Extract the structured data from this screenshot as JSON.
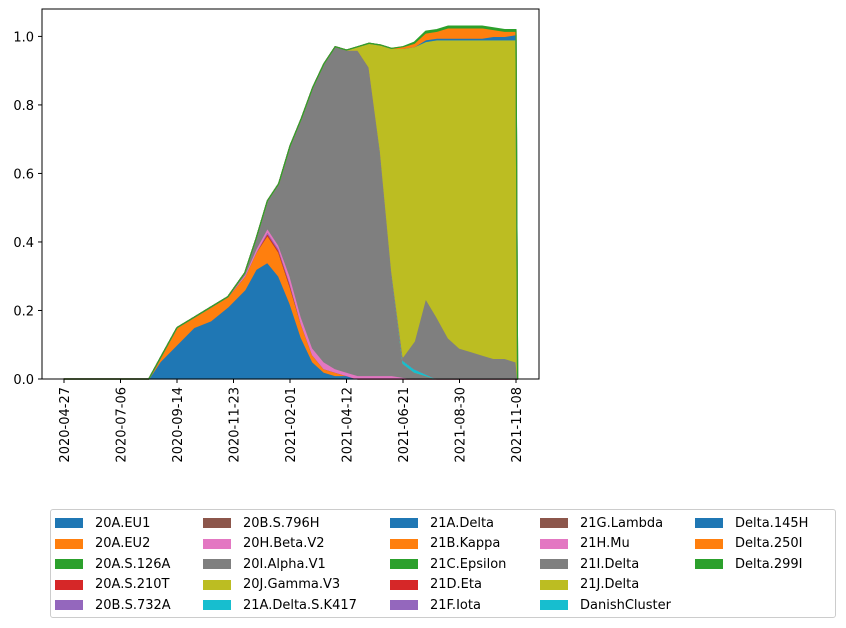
{
  "chart_data": {
    "type": "area",
    "stacked": true,
    "ylim": [
      0,
      1.08
    ],
    "yticks": [
      "0.0",
      "0.2",
      "0.4",
      "0.6",
      "0.8",
      "1.0"
    ],
    "xticks": [
      "2020-04-27",
      "2020-07-06",
      "2020-09-14",
      "2020-11-23",
      "2021-02-01",
      "2021-04-12",
      "2021-06-21",
      "2021-08-30",
      "2021-11-08"
    ],
    "legend_position": "below, 5 columns",
    "x": [
      "2020-04-27",
      "2020-07-06",
      "2020-08-10",
      "2020-08-24",
      "2020-09-14",
      "2020-10-05",
      "2020-10-26",
      "2020-11-16",
      "2020-12-07",
      "2020-12-21",
      "2021-01-04",
      "2021-01-18",
      "2021-02-01",
      "2021-02-15",
      "2021-03-01",
      "2021-03-15",
      "2021-03-29",
      "2021-04-12",
      "2021-04-26",
      "2021-05-10",
      "2021-05-24",
      "2021-06-07",
      "2021-06-21",
      "2021-07-05",
      "2021-07-19",
      "2021-08-02",
      "2021-08-16",
      "2021-08-30",
      "2021-09-13",
      "2021-09-27",
      "2021-10-11",
      "2021-10-25",
      "2021-11-08",
      "2021-11-10"
    ],
    "series": [
      {
        "name": "20A.EU1",
        "color": "#1f77b4",
        "values": [
          0,
          0,
          0,
          0.05,
          0.1,
          0.15,
          0.17,
          0.21,
          0.26,
          0.32,
          0.34,
          0.3,
          0.22,
          0.12,
          0.05,
          0.02,
          0.01,
          0.01,
          0,
          0,
          0,
          0,
          0,
          0,
          0,
          0,
          0,
          0,
          0,
          0,
          0,
          0,
          0,
          0
        ]
      },
      {
        "name": "20A.EU2",
        "color": "#ff7f0e",
        "values": [
          0,
          0,
          0,
          0.01,
          0.05,
          0.03,
          0.04,
          0.03,
          0.04,
          0.05,
          0.08,
          0.07,
          0.05,
          0.04,
          0.02,
          0.01,
          0.01,
          0,
          0,
          0,
          0,
          0,
          0,
          0,
          0,
          0,
          0,
          0,
          0,
          0,
          0,
          0,
          0,
          0
        ]
      },
      {
        "name": "20A.S.126A",
        "color": "#2ca02c",
        "values": [
          0,
          0,
          0,
          0,
          0,
          0,
          0,
          0,
          0,
          0,
          0,
          0,
          0,
          0,
          0,
          0,
          0,
          0,
          0,
          0,
          0,
          0,
          0,
          0,
          0,
          0,
          0,
          0,
          0,
          0,
          0,
          0,
          0,
          0
        ]
      },
      {
        "name": "20A.S.210T",
        "color": "#d62728",
        "values": [
          0,
          0,
          0,
          0,
          0,
          0,
          0,
          0,
          0,
          0,
          0.005,
          0.005,
          0.005,
          0,
          0,
          0,
          0,
          0,
          0,
          0,
          0,
          0,
          0,
          0,
          0,
          0,
          0,
          0,
          0,
          0,
          0,
          0,
          0,
          0
        ]
      },
      {
        "name": "20B.S.732A",
        "color": "#9467bd",
        "values": [
          0,
          0,
          0,
          0,
          0,
          0,
          0,
          0,
          0,
          0,
          0.005,
          0.005,
          0.005,
          0,
          0,
          0,
          0,
          0,
          0,
          0,
          0,
          0,
          0,
          0,
          0,
          0,
          0,
          0,
          0,
          0,
          0,
          0,
          0,
          0
        ]
      },
      {
        "name": "20B.S.796H",
        "color": "#8c564b",
        "values": [
          0,
          0,
          0,
          0,
          0,
          0,
          0,
          0,
          0,
          0,
          0,
          0,
          0,
          0,
          0,
          0,
          0,
          0,
          0,
          0,
          0,
          0,
          0,
          0,
          0,
          0,
          0,
          0,
          0,
          0,
          0,
          0,
          0,
          0
        ]
      },
      {
        "name": "20H.Beta.V2",
        "color": "#e377c2",
        "values": [
          0,
          0,
          0,
          0,
          0,
          0,
          0,
          0,
          0.005,
          0.01,
          0.01,
          0.01,
          0.02,
          0.02,
          0.02,
          0.02,
          0.01,
          0.01,
          0.01,
          0.01,
          0.01,
          0.01,
          0.005,
          0,
          0,
          0,
          0,
          0,
          0,
          0,
          0,
          0,
          0,
          0
        ]
      },
      {
        "name": "20I.Alpha.V1",
        "color": "#7f7f7f",
        "values": [
          0,
          0,
          0,
          0,
          0,
          0,
          0,
          0,
          0.005,
          0.03,
          0.08,
          0.18,
          0.38,
          0.58,
          0.76,
          0.87,
          0.94,
          0.94,
          0.95,
          0.9,
          0.65,
          0.3,
          0.04,
          0.02,
          0.01,
          0,
          0,
          0,
          0,
          0,
          0,
          0,
          0,
          0
        ]
      },
      {
        "name": "20J.Gamma.V3",
        "color": "#bcbd22",
        "values": [
          0,
          0,
          0,
          0,
          0,
          0,
          0,
          0,
          0,
          0,
          0,
          0,
          0,
          0,
          0,
          0,
          0,
          0,
          0,
          0,
          0,
          0,
          0,
          0,
          0,
          0,
          0,
          0,
          0,
          0,
          0,
          0,
          0,
          0
        ]
      },
      {
        "name": "21A.Delta.S.K417",
        "color": "#17becf",
        "values": [
          0,
          0,
          0,
          0,
          0,
          0,
          0,
          0,
          0,
          0,
          0,
          0,
          0,
          0,
          0,
          0,
          0,
          0,
          0,
          0,
          0.005,
          0.005,
          0.01,
          0.01,
          0.005,
          0,
          0,
          0,
          0,
          0,
          0,
          0,
          0,
          0
        ]
      },
      {
        "name": "21A.Delta",
        "color": "#1f77b4",
        "values": [
          0,
          0,
          0,
          0,
          0,
          0,
          0,
          0,
          0,
          0,
          0,
          0,
          0,
          0,
          0,
          0,
          0,
          0,
          0,
          0,
          0,
          0,
          0,
          0,
          0,
          0,
          0,
          0,
          0,
          0,
          0,
          0,
          0,
          0
        ]
      },
      {
        "name": "21B.Kappa",
        "color": "#ff7f0e",
        "values": [
          0,
          0,
          0,
          0,
          0,
          0,
          0,
          0,
          0,
          0,
          0,
          0,
          0,
          0,
          0,
          0,
          0,
          0,
          0,
          0,
          0,
          0,
          0,
          0,
          0,
          0,
          0,
          0,
          0,
          0,
          0,
          0,
          0,
          0
        ]
      },
      {
        "name": "21C.Epsilon",
        "color": "#2ca02c",
        "values": [
          0,
          0,
          0,
          0,
          0,
          0,
          0,
          0,
          0,
          0,
          0,
          0,
          0,
          0,
          0,
          0,
          0,
          0,
          0,
          0,
          0,
          0,
          0,
          0,
          0,
          0,
          0,
          0,
          0,
          0,
          0,
          0,
          0,
          0
        ]
      },
      {
        "name": "21D.Eta",
        "color": "#d62728",
        "values": [
          0,
          0,
          0,
          0,
          0,
          0,
          0,
          0,
          0,
          0,
          0,
          0,
          0,
          0,
          0,
          0,
          0,
          0,
          0,
          0,
          0,
          0,
          0,
          0,
          0,
          0,
          0,
          0,
          0,
          0,
          0,
          0,
          0,
          0
        ]
      },
      {
        "name": "21F.Iota",
        "color": "#9467bd",
        "values": [
          0,
          0,
          0,
          0,
          0,
          0,
          0,
          0,
          0,
          0,
          0,
          0,
          0,
          0,
          0,
          0,
          0,
          0,
          0,
          0,
          0,
          0,
          0,
          0,
          0,
          0,
          0,
          0,
          0,
          0,
          0,
          0,
          0,
          0
        ]
      },
      {
        "name": "21G.Lambda",
        "color": "#8c564b",
        "values": [
          0,
          0,
          0,
          0,
          0,
          0,
          0,
          0,
          0,
          0,
          0,
          0,
          0,
          0,
          0,
          0,
          0,
          0,
          0,
          0,
          0,
          0,
          0,
          0,
          0,
          0,
          0,
          0,
          0,
          0,
          0,
          0,
          0,
          0
        ]
      },
      {
        "name": "21H.Mu",
        "color": "#e377c2",
        "values": [
          0,
          0,
          0,
          0,
          0,
          0,
          0,
          0,
          0,
          0,
          0,
          0,
          0,
          0,
          0,
          0,
          0,
          0,
          0,
          0,
          0,
          0,
          0,
          0,
          0,
          0,
          0,
          0,
          0,
          0,
          0,
          0,
          0,
          0
        ]
      },
      {
        "name": "21I.Delta",
        "color": "#7f7f7f",
        "values": [
          0,
          0,
          0,
          0,
          0,
          0,
          0,
          0,
          0,
          0,
          0,
          0,
          0,
          0,
          0,
          0,
          0,
          0,
          0,
          0,
          0,
          0,
          0.01,
          0.08,
          0.22,
          0.18,
          0.12,
          0.09,
          0.08,
          0.07,
          0.06,
          0.06,
          0.05,
          0
        ]
      },
      {
        "name": "21J.Delta",
        "color": "#bcbd22",
        "values": [
          0,
          0,
          0,
          0,
          0,
          0,
          0,
          0,
          0,
          0,
          0,
          0,
          0,
          0,
          0,
          0,
          0,
          0,
          0.01,
          0.07,
          0.31,
          0.65,
          0.9,
          0.86,
          0.75,
          0.81,
          0.87,
          0.9,
          0.91,
          0.92,
          0.93,
          0.93,
          0.94,
          0
        ]
      },
      {
        "name": "DanishCluster",
        "color": "#17becf",
        "values": [
          0,
          0,
          0,
          0,
          0,
          0,
          0,
          0,
          0,
          0,
          0,
          0,
          0,
          0,
          0,
          0,
          0,
          0,
          0,
          0,
          0,
          0,
          0,
          0,
          0,
          0,
          0,
          0,
          0,
          0,
          0,
          0,
          0,
          0
        ]
      },
      {
        "name": "Delta.145H",
        "color": "#1f77b4",
        "values": [
          0,
          0,
          0,
          0,
          0,
          0,
          0,
          0,
          0,
          0,
          0,
          0,
          0,
          0,
          0,
          0,
          0,
          0,
          0,
          0,
          0,
          0,
          0,
          0,
          0.005,
          0.005,
          0.005,
          0.005,
          0.005,
          0.005,
          0.01,
          0.01,
          0.015,
          0
        ]
      },
      {
        "name": "Delta.250I",
        "color": "#ff7f0e",
        "values": [
          0,
          0,
          0,
          0,
          0,
          0,
          0,
          0,
          0,
          0,
          0,
          0,
          0,
          0,
          0,
          0,
          0,
          0,
          0,
          0,
          0,
          0,
          0.005,
          0.01,
          0.02,
          0.02,
          0.03,
          0.03,
          0.03,
          0.03,
          0.02,
          0.015,
          0.01,
          0
        ]
      },
      {
        "name": "Delta.299I",
        "color": "#2ca02c",
        "values": [
          0,
          0,
          0,
          0,
          0,
          0,
          0,
          0,
          0,
          0,
          0,
          0,
          0,
          0,
          0,
          0,
          0,
          0,
          0,
          0,
          0,
          0,
          0,
          0.003,
          0.005,
          0.005,
          0.005,
          0.005,
          0.005,
          0.005,
          0.005,
          0.005,
          0.005,
          0
        ]
      }
    ]
  }
}
